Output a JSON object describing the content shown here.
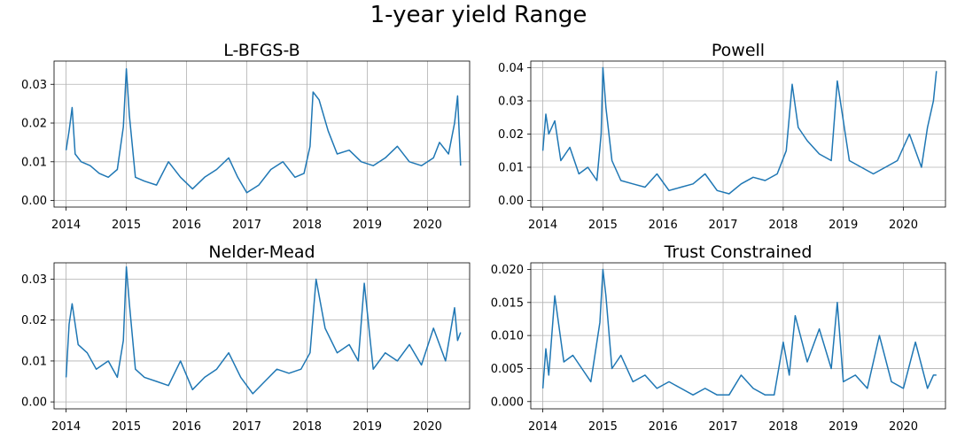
{
  "figure": {
    "title": "1-year yield Range"
  },
  "style": {
    "line_color": "#1f77b4",
    "grid_color": "#b0b0b0",
    "axis_color": "#000000"
  },
  "chart_data": [
    {
      "type": "line",
      "title": "L-BFGS-B",
      "xlabel": "",
      "ylabel": "",
      "xlim": [
        2013.8,
        2020.7
      ],
      "ylim": [
        -0.0017,
        0.036
      ],
      "xticks": [
        2014,
        2015,
        2016,
        2017,
        2018,
        2019,
        2020
      ],
      "xtick_labels": [
        "2014",
        "2015",
        "2016",
        "2017",
        "2018",
        "2019",
        "2020"
      ],
      "yticks": [
        0.0,
        0.01,
        0.02,
        0.03
      ],
      "ytick_labels": [
        "0.00",
        "0.01",
        "0.02",
        "0.03"
      ],
      "grid": true,
      "x": [
        2014.0,
        2014.05,
        2014.1,
        2014.15,
        2014.25,
        2014.4,
        2014.55,
        2014.7,
        2014.85,
        2014.95,
        2015.0,
        2015.05,
        2015.15,
        2015.3,
        2015.5,
        2015.7,
        2015.9,
        2016.1,
        2016.3,
        2016.5,
        2016.7,
        2016.85,
        2017.0,
        2017.2,
        2017.4,
        2017.6,
        2017.8,
        2017.95,
        2018.05,
        2018.1,
        2018.2,
        2018.35,
        2018.5,
        2018.7,
        2018.9,
        2019.1,
        2019.3,
        2019.5,
        2019.7,
        2019.9,
        2020.1,
        2020.2,
        2020.35,
        2020.45,
        2020.5,
        2020.55
      ],
      "y": [
        0.013,
        0.018,
        0.024,
        0.012,
        0.01,
        0.009,
        0.007,
        0.006,
        0.008,
        0.019,
        0.034,
        0.022,
        0.006,
        0.005,
        0.004,
        0.01,
        0.006,
        0.003,
        0.006,
        0.008,
        0.011,
        0.006,
        0.002,
        0.004,
        0.008,
        0.01,
        0.006,
        0.007,
        0.014,
        0.028,
        0.026,
        0.018,
        0.012,
        0.013,
        0.01,
        0.009,
        0.011,
        0.014,
        0.01,
        0.009,
        0.011,
        0.015,
        0.012,
        0.02,
        0.027,
        0.009
      ]
    },
    {
      "type": "line",
      "title": "Powell",
      "xlabel": "",
      "ylabel": "",
      "xlim": [
        2013.8,
        2020.7
      ],
      "ylim": [
        -0.002,
        0.042
      ],
      "xticks": [
        2014,
        2015,
        2016,
        2017,
        2018,
        2019,
        2020
      ],
      "xtick_labels": [
        "2014",
        "2015",
        "2016",
        "2017",
        "2018",
        "2019",
        "2020"
      ],
      "yticks": [
        0.0,
        0.01,
        0.02,
        0.03,
        0.04
      ],
      "ytick_labels": [
        "0.00",
        "0.01",
        "0.02",
        "0.03",
        "0.04"
      ],
      "grid": true,
      "x": [
        2014.0,
        2014.05,
        2014.1,
        2014.2,
        2014.3,
        2014.45,
        2014.6,
        2014.75,
        2014.9,
        2014.97,
        2015.0,
        2015.05,
        2015.15,
        2015.3,
        2015.5,
        2015.7,
        2015.9,
        2016.1,
        2016.3,
        2016.5,
        2016.7,
        2016.9,
        2017.1,
        2017.3,
        2017.5,
        2017.7,
        2017.9,
        2018.05,
        2018.15,
        2018.25,
        2018.4,
        2018.6,
        2018.8,
        2018.9,
        2019.1,
        2019.3,
        2019.5,
        2019.7,
        2019.9,
        2020.1,
        2020.3,
        2020.4,
        2020.5,
        2020.55
      ],
      "y": [
        0.015,
        0.026,
        0.02,
        0.024,
        0.012,
        0.016,
        0.008,
        0.01,
        0.006,
        0.02,
        0.04,
        0.028,
        0.012,
        0.006,
        0.005,
        0.004,
        0.008,
        0.003,
        0.004,
        0.005,
        0.008,
        0.003,
        0.002,
        0.005,
        0.007,
        0.006,
        0.008,
        0.015,
        0.035,
        0.022,
        0.018,
        0.014,
        0.012,
        0.036,
        0.012,
        0.01,
        0.008,
        0.01,
        0.012,
        0.02,
        0.01,
        0.022,
        0.03,
        0.039
      ]
    },
    {
      "type": "line",
      "title": "Nelder-Mead",
      "xlabel": "",
      "ylabel": "",
      "xlim": [
        2013.8,
        2020.7
      ],
      "ylim": [
        -0.0017,
        0.034
      ],
      "xticks": [
        2014,
        2015,
        2016,
        2017,
        2018,
        2019,
        2020
      ],
      "xtick_labels": [
        "2014",
        "2015",
        "2016",
        "2017",
        "2018",
        "2019",
        "2020"
      ],
      "yticks": [
        0.0,
        0.01,
        0.02,
        0.03
      ],
      "ytick_labels": [
        "0.00",
        "0.01",
        "0.02",
        "0.03"
      ],
      "grid": true,
      "x": [
        2014.0,
        2014.05,
        2014.1,
        2014.2,
        2014.35,
        2014.5,
        2014.7,
        2014.85,
        2014.95,
        2015.0,
        2015.05,
        2015.15,
        2015.3,
        2015.5,
        2015.7,
        2015.9,
        2016.1,
        2016.3,
        2016.5,
        2016.7,
        2016.9,
        2017.1,
        2017.3,
        2017.5,
        2017.7,
        2017.9,
        2018.05,
        2018.15,
        2018.3,
        2018.5,
        2018.7,
        2018.85,
        2018.95,
        2019.1,
        2019.3,
        2019.5,
        2019.7,
        2019.9,
        2020.1,
        2020.3,
        2020.45,
        2020.5,
        2020.55
      ],
      "y": [
        0.006,
        0.019,
        0.024,
        0.014,
        0.012,
        0.008,
        0.01,
        0.006,
        0.015,
        0.033,
        0.024,
        0.008,
        0.006,
        0.005,
        0.004,
        0.01,
        0.003,
        0.006,
        0.008,
        0.012,
        0.006,
        0.002,
        0.005,
        0.008,
        0.007,
        0.008,
        0.012,
        0.03,
        0.018,
        0.012,
        0.014,
        0.01,
        0.029,
        0.008,
        0.012,
        0.01,
        0.014,
        0.009,
        0.018,
        0.01,
        0.023,
        0.015,
        0.017
      ]
    },
    {
      "type": "line",
      "title": "Trust Constrained",
      "xlabel": "",
      "ylabel": "",
      "xlim": [
        2013.8,
        2020.7
      ],
      "ylim": [
        -0.0011,
        0.021
      ],
      "xticks": [
        2014,
        2015,
        2016,
        2017,
        2018,
        2019,
        2020
      ],
      "xtick_labels": [
        "2014",
        "2015",
        "2016",
        "2017",
        "2018",
        "2019",
        "2020"
      ],
      "yticks": [
        0.0,
        0.005,
        0.01,
        0.015,
        0.02
      ],
      "ytick_labels": [
        "0.000",
        "0.005",
        "0.010",
        "0.015",
        "0.020"
      ],
      "grid": true,
      "x": [
        2014.0,
        2014.05,
        2014.1,
        2014.2,
        2014.35,
        2014.5,
        2014.65,
        2014.8,
        2014.95,
        2015.0,
        2015.05,
        2015.15,
        2015.3,
        2015.5,
        2015.7,
        2015.9,
        2016.1,
        2016.3,
        2016.5,
        2016.7,
        2016.9,
        2017.1,
        2017.3,
        2017.5,
        2017.7,
        2017.85,
        2018.0,
        2018.1,
        2018.2,
        2018.4,
        2018.6,
        2018.8,
        2018.9,
        2019.0,
        2019.2,
        2019.4,
        2019.6,
        2019.8,
        2020.0,
        2020.2,
        2020.4,
        2020.5,
        2020.55
      ],
      "y": [
        0.002,
        0.008,
        0.004,
        0.016,
        0.006,
        0.007,
        0.005,
        0.003,
        0.012,
        0.02,
        0.016,
        0.005,
        0.007,
        0.003,
        0.004,
        0.002,
        0.003,
        0.002,
        0.001,
        0.002,
        0.001,
        0.001,
        0.004,
        0.002,
        0.001,
        0.001,
        0.009,
        0.004,
        0.013,
        0.006,
        0.011,
        0.005,
        0.015,
        0.003,
        0.004,
        0.002,
        0.01,
        0.003,
        0.002,
        0.009,
        0.002,
        0.004,
        0.004
      ]
    }
  ]
}
